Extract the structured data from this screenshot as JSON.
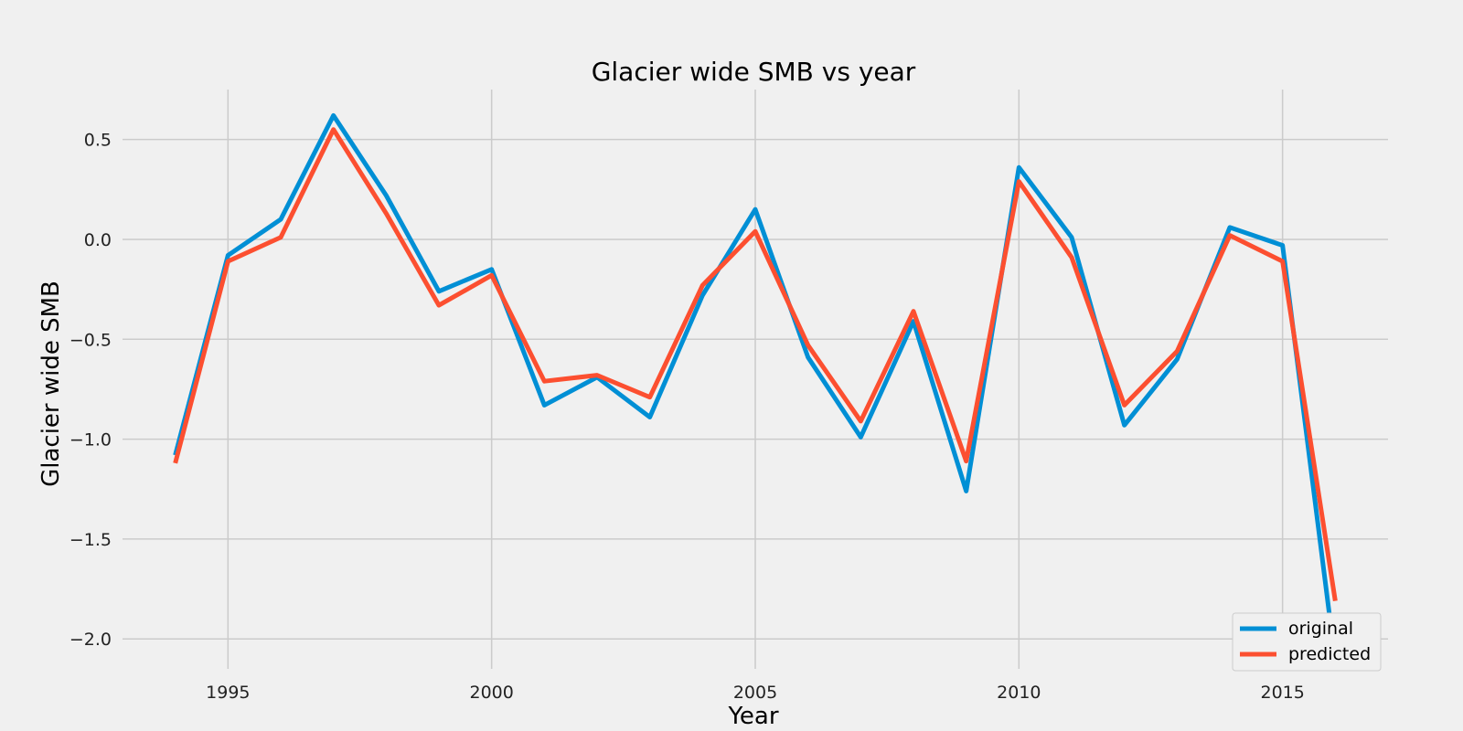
{
  "chart_data": {
    "type": "line",
    "title": "Glacier wide SMB vs year",
    "xlabel": "Year",
    "ylabel": "Glacier wide SMB",
    "xlim": [
      1993,
      2017
    ],
    "ylim": [
      -2.15,
      0.75
    ],
    "x_ticks": [
      1995,
      2000,
      2005,
      2010,
      2015
    ],
    "y_ticks": [
      0.5,
      0.0,
      -0.5,
      -1.0,
      -1.5,
      -2.0
    ],
    "y_tick_labels": [
      "0.5",
      "0.0",
      "−0.5",
      "−1.0",
      "−1.5",
      "−2.0"
    ],
    "grid": true,
    "legend_position": "lower-right",
    "x": [
      1994,
      1995,
      1996,
      1997,
      1998,
      1999,
      2000,
      2001,
      2002,
      2003,
      2004,
      2005,
      2006,
      2007,
      2008,
      2009,
      2010,
      2011,
      2012,
      2013,
      2014,
      2015,
      2016
    ],
    "series": [
      {
        "name": "original",
        "color": "#008fd5",
        "values": [
          -1.08,
          -0.08,
          0.1,
          0.62,
          0.22,
          -0.26,
          -0.15,
          -0.83,
          -0.69,
          -0.89,
          -0.28,
          0.15,
          -0.59,
          -0.99,
          -0.41,
          -1.26,
          0.36,
          0.01,
          -0.93,
          -0.6,
          0.06,
          -0.03,
          -2.11
        ]
      },
      {
        "name": "predicted",
        "color": "#fc4f30",
        "values": [
          -1.12,
          -0.11,
          0.01,
          0.55,
          0.13,
          -0.33,
          -0.18,
          -0.71,
          -0.68,
          -0.79,
          -0.23,
          0.04,
          -0.53,
          -0.91,
          -0.36,
          -1.11,
          0.29,
          -0.09,
          -0.83,
          -0.56,
          0.02,
          -0.11,
          -1.81
        ]
      }
    ]
  }
}
